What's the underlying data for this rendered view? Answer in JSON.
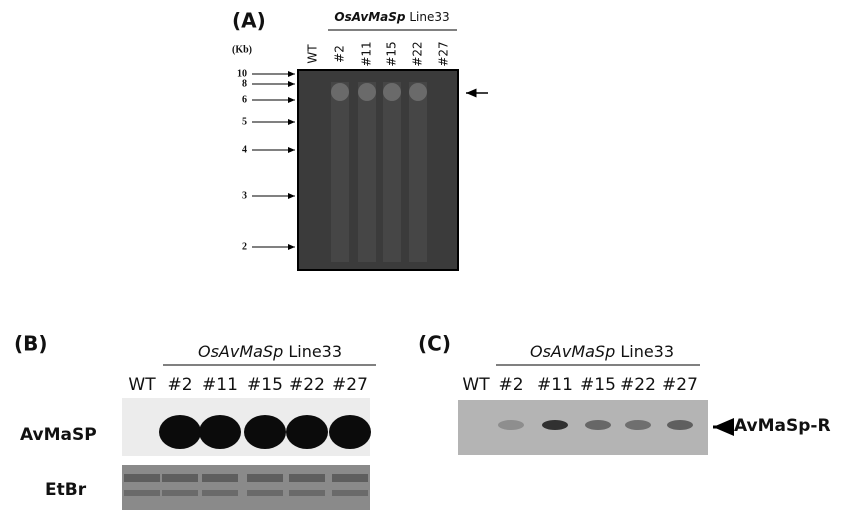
{
  "panel_a": {
    "label": "(A)",
    "header": {
      "italic": "OsAvMaSp",
      "rest": "Line33"
    },
    "lanes": [
      "WT",
      "#2",
      "#11",
      "#15",
      "#22",
      "#27"
    ],
    "unit": "(Kb)",
    "markers": [
      "10",
      "8",
      "6",
      "5",
      "4",
      "3",
      "2"
    ]
  },
  "panel_b": {
    "label": "(B)",
    "header": {
      "italic": "OsAvMaSp",
      "rest": "Line33"
    },
    "lanes": [
      "WT",
      "#2",
      "#11",
      "#15",
      "#22",
      "#27"
    ],
    "rows": [
      "AvMaSP",
      "EtBr"
    ]
  },
  "panel_c": {
    "label": "(C)",
    "header": {
      "italic": "OsAvMaSp",
      "rest": "Line33"
    },
    "lanes": [
      "WT",
      "#2",
      "#11",
      "#15",
      "#22",
      "#27"
    ],
    "band_label": "AvMaSp-R"
  }
}
